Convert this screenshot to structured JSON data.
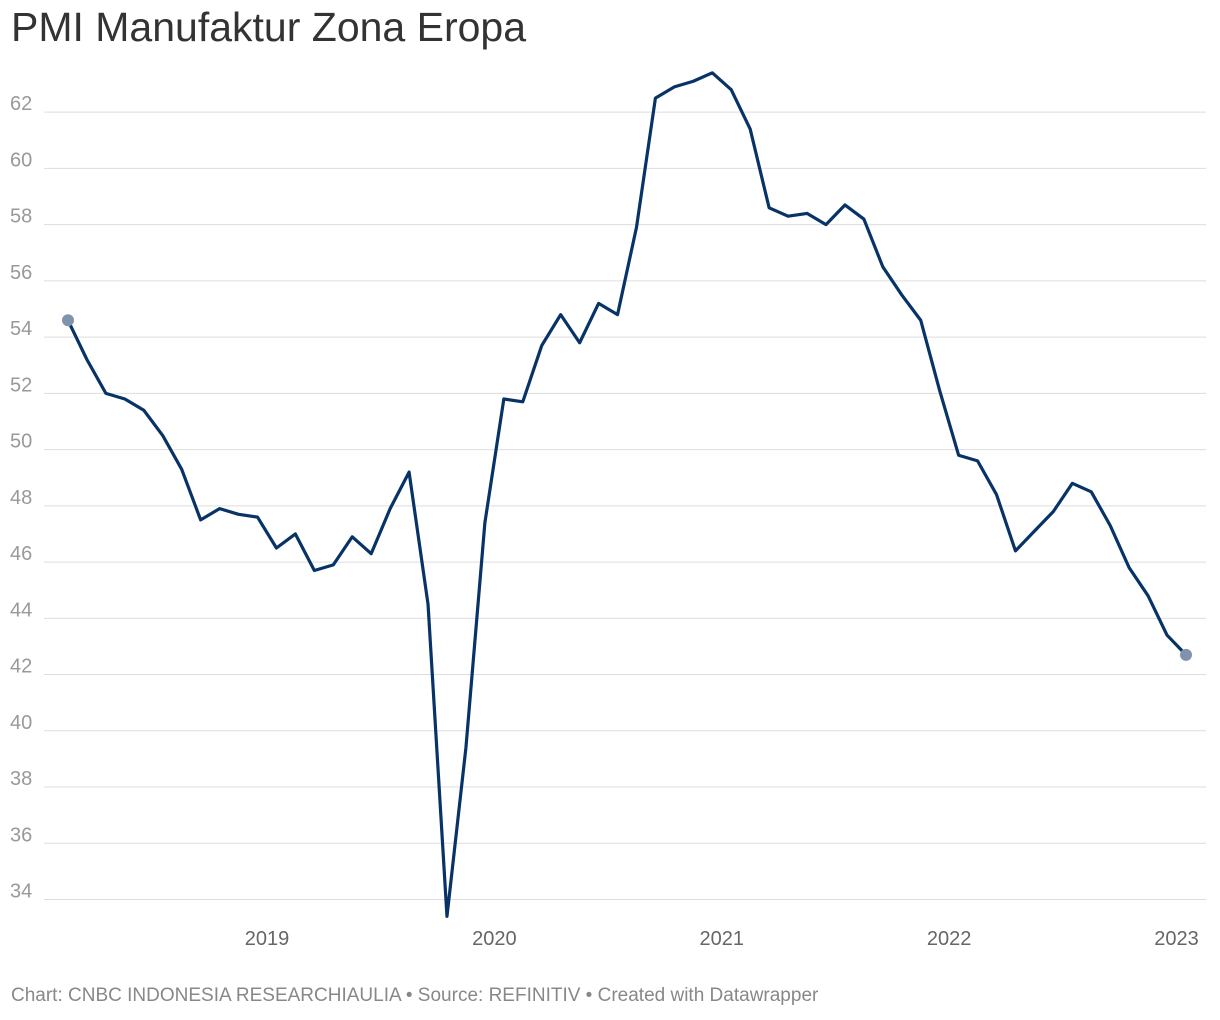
{
  "chart_data": {
    "type": "line",
    "title": "PMI Manufaktur Zona Eropa",
    "xlabel": "",
    "ylabel": "",
    "ylim": [
      33.2,
      63.5
    ],
    "yticks": [
      34,
      36,
      38,
      40,
      42,
      44,
      46,
      48,
      50,
      52,
      54,
      56,
      58,
      60,
      62
    ],
    "year_ticks": [
      "2019",
      "2020",
      "2021",
      "2022",
      "2023"
    ],
    "grid": true,
    "series": [
      {
        "name": "PMI Manufaktur Zona Eropa",
        "color": "#083366",
        "start": "2018-08",
        "values": [
          54.6,
          53.2,
          52.0,
          51.8,
          51.4,
          50.5,
          49.3,
          47.5,
          47.9,
          47.7,
          47.6,
          46.5,
          47.0,
          45.7,
          45.9,
          46.9,
          46.3,
          47.9,
          49.2,
          44.5,
          33.4,
          39.4,
          47.4,
          51.8,
          51.7,
          53.7,
          54.8,
          53.8,
          55.2,
          54.8,
          57.9,
          62.5,
          62.9,
          63.1,
          63.4,
          62.8,
          61.4,
          58.6,
          58.3,
          58.4,
          58.0,
          58.7,
          58.2,
          56.5,
          55.5,
          54.6,
          52.1,
          49.8,
          49.6,
          48.4,
          46.4,
          47.1,
          47.8,
          48.8,
          48.5,
          47.3,
          45.8,
          44.8,
          43.4,
          42.7
        ]
      }
    ]
  },
  "footer": {
    "text": "Chart: CNBC INDONESIA RESEARCHIAULIA • Source: REFINITIV • Created with Datawrapper"
  }
}
